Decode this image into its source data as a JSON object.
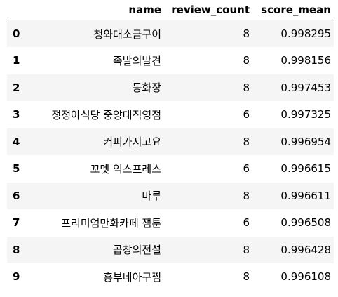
{
  "table": {
    "columns": [
      "",
      "name",
      "review_count",
      "score_mean"
    ],
    "rows": [
      {
        "index": "0",
        "name": "청와대소금구이",
        "review_count": "8",
        "score_mean": "0.998295"
      },
      {
        "index": "1",
        "name": "족발의발견",
        "review_count": "8",
        "score_mean": "0.998156"
      },
      {
        "index": "2",
        "name": "동화장",
        "review_count": "8",
        "score_mean": "0.997453"
      },
      {
        "index": "3",
        "name": "정정아식당 중앙대직영점",
        "review_count": "6",
        "score_mean": "0.997325"
      },
      {
        "index": "4",
        "name": "커피가지고요",
        "review_count": "8",
        "score_mean": "0.996954"
      },
      {
        "index": "5",
        "name": "꼬멧 익스프레스",
        "review_count": "6",
        "score_mean": "0.996615"
      },
      {
        "index": "6",
        "name": "마루",
        "review_count": "8",
        "score_mean": "0.996611"
      },
      {
        "index": "7",
        "name": "프리미엄만화카페 잼툰",
        "review_count": "6",
        "score_mean": "0.996508"
      },
      {
        "index": "8",
        "name": "곱창의전설",
        "review_count": "8",
        "score_mean": "0.996428"
      },
      {
        "index": "9",
        "name": "흥부네아구찜",
        "review_count": "8",
        "score_mean": "0.996108"
      }
    ]
  }
}
